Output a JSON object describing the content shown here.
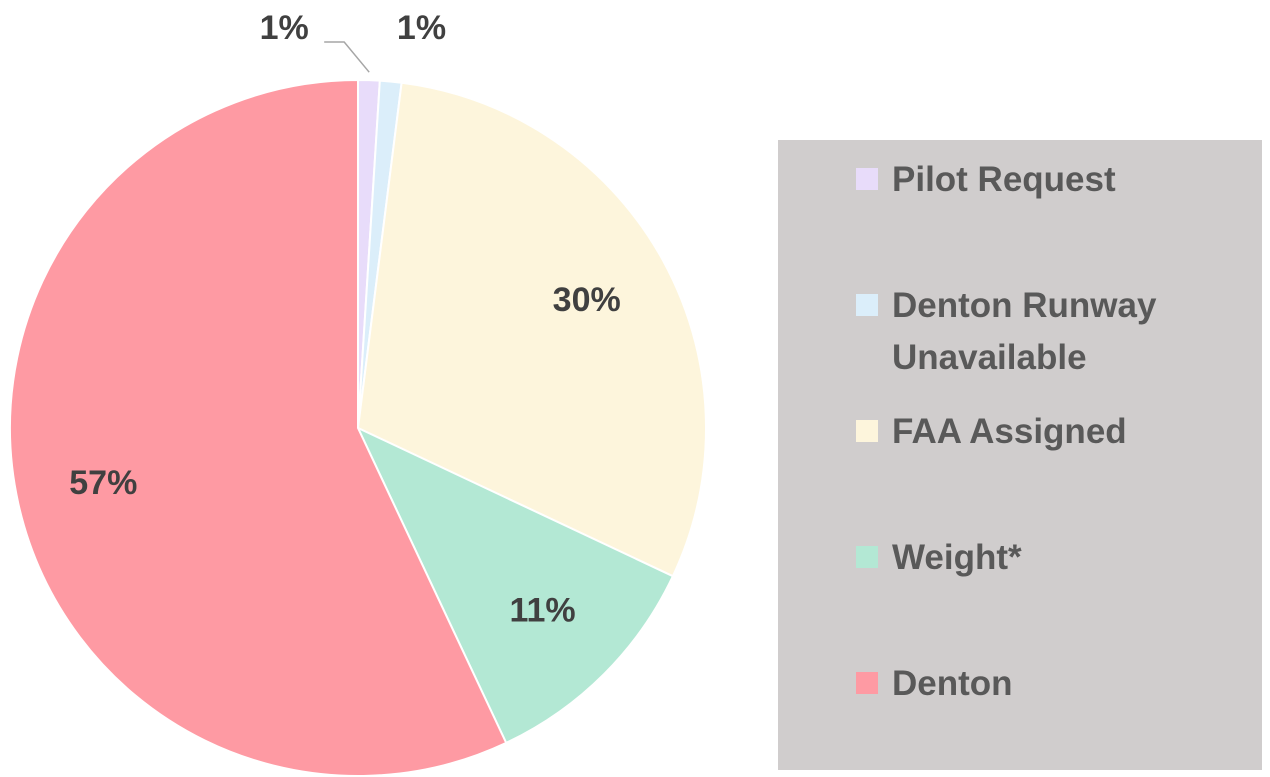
{
  "chart_data": {
    "type": "pie",
    "categories": [
      "Pilot Request",
      "Denton Runway Unavailable",
      "FAA Assigned",
      "Weight*",
      "Denton"
    ],
    "values": [
      1,
      1,
      30,
      11,
      57
    ],
    "value_labels": [
      "1%",
      "1%",
      "30%",
      "11%",
      "57%"
    ],
    "colors": [
      "#e8dcfa",
      "#dbeefa",
      "#fdf5dc",
      "#b3e8d4",
      "#fe9aa3"
    ],
    "legend": "right"
  }
}
